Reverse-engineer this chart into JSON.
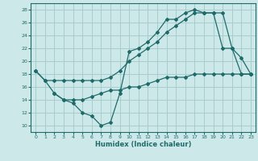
{
  "xlabel": "Humidex (Indice chaleur)",
  "bg_color": "#cde8e8",
  "grid_color": "#a8cccc",
  "line_color": "#1f6b6b",
  "xlim": [
    -0.5,
    23.5
  ],
  "ylim": [
    9,
    29
  ],
  "xticks": [
    0,
    1,
    2,
    3,
    4,
    5,
    6,
    7,
    8,
    9,
    10,
    11,
    12,
    13,
    14,
    15,
    16,
    17,
    18,
    19,
    20,
    21,
    22,
    23
  ],
  "yticks": [
    10,
    12,
    14,
    16,
    18,
    20,
    22,
    24,
    26,
    28
  ],
  "series1_x": [
    0,
    1,
    2,
    3,
    4,
    5,
    6,
    7,
    8,
    9,
    10,
    11,
    12,
    13,
    14,
    15,
    16,
    17,
    18,
    19,
    20,
    21,
    22,
    23
  ],
  "series1_y": [
    18.5,
    17.0,
    15.0,
    14.0,
    13.5,
    12.0,
    11.5,
    10.0,
    10.5,
    15.0,
    21.5,
    22.0,
    23.0,
    24.5,
    26.5,
    26.5,
    27.5,
    28.0,
    27.5,
    27.5,
    22.0,
    22.0,
    20.5,
    18.0
  ],
  "series2_x": [
    0,
    1,
    2,
    3,
    4,
    5,
    6,
    7,
    8,
    9,
    10,
    11,
    12,
    13,
    14,
    15,
    16,
    17,
    18,
    19,
    20,
    21,
    22,
    23
  ],
  "series2_y": [
    18.5,
    17.0,
    17.0,
    17.0,
    17.0,
    17.0,
    17.0,
    17.0,
    17.5,
    18.5,
    20.0,
    21.0,
    22.0,
    23.0,
    24.5,
    25.5,
    26.5,
    27.5,
    27.5,
    27.5,
    27.5,
    22.0,
    18.0,
    18.0
  ],
  "series3_x": [
    2,
    3,
    4,
    5,
    6,
    7,
    8,
    9,
    10,
    11,
    12,
    13,
    14,
    15,
    16,
    17,
    18,
    19,
    20,
    21,
    22,
    23
  ],
  "series3_y": [
    15.0,
    14.0,
    14.0,
    14.0,
    14.5,
    15.0,
    15.5,
    15.5,
    16.0,
    16.0,
    16.5,
    17.0,
    17.5,
    17.5,
    17.5,
    18.0,
    18.0,
    18.0,
    18.0,
    18.0,
    18.0,
    18.0
  ]
}
